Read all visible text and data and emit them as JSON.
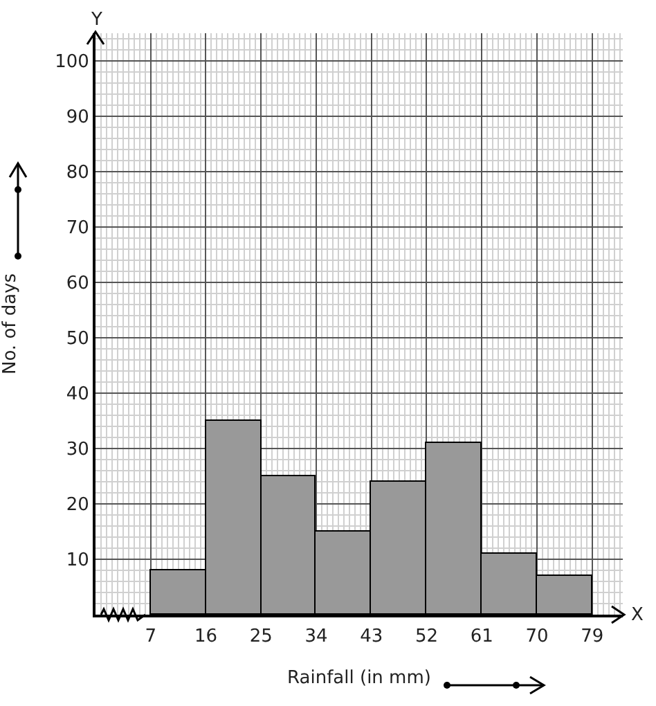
{
  "chart_data": {
    "type": "histogram",
    "xlabel": "Rainfall (in mm)",
    "ylabel": "No. of days",
    "bins": [
      7,
      16,
      25,
      34,
      43,
      52,
      61,
      70,
      79
    ],
    "values": [
      8,
      35,
      25,
      15,
      24,
      31,
      11,
      7
    ],
    "color": "#999999",
    "xlim": [
      -2,
      84
    ],
    "ylim": [
      0,
      105
    ],
    "xticks": [
      7,
      16,
      25,
      34,
      43,
      52,
      61,
      70,
      79
    ],
    "yticks": [
      10,
      20,
      30,
      40,
      50,
      60,
      70,
      80,
      90,
      100
    ],
    "annotations": [
      "X",
      "Y"
    ],
    "grid": true
  }
}
